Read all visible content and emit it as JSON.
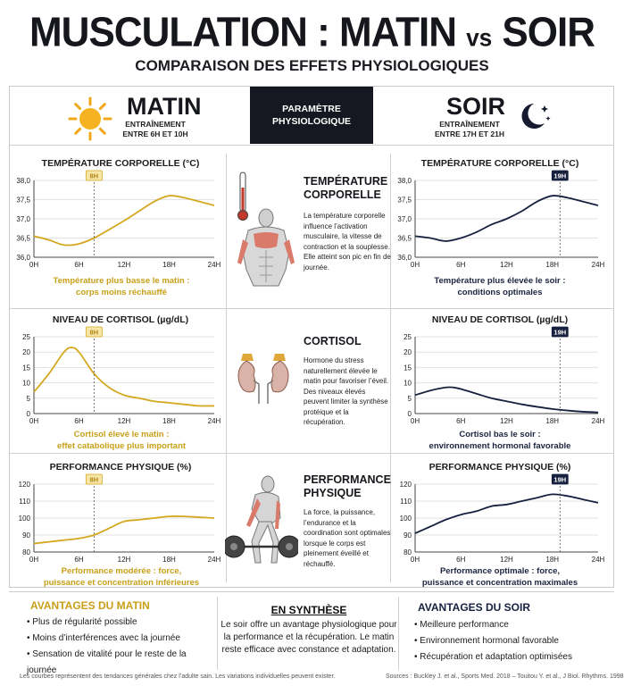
{
  "title_main": "MUSCULATION : MATIN",
  "title_vs": "vs",
  "title_end": "SOIR",
  "subtitle": "COMPARAISON DES EFFETS PHYSIOLOGIQUES",
  "header": {
    "morning_title": "MATIN",
    "morning_sub_1": "ENTRAÎNEMENT",
    "morning_sub_2": "ENTRE 6H ET 10H",
    "param_1": "PARAMÈTRE",
    "param_2": "PHYSIOLOGIQUE",
    "evening_title": "SOIR",
    "evening_sub_1": "ENTRAÎNEMENT",
    "evening_sub_2": "ENTRE 17H ET 21H"
  },
  "colors": {
    "gold": "#d4a820",
    "navy": "#16203f",
    "grid": "#e2e2e2",
    "dark": "#151821"
  },
  "icons": {
    "morning": "sun-icon",
    "evening": "moon-stars-icon",
    "row1": "thermometer-icon",
    "row1_figure": "muscular-torso-icon",
    "row2": "kidneys-adrenal-icon",
    "row3": "deadlift-athlete-icon"
  },
  "params": [
    {
      "name_1": "TEMPÉRATURE",
      "name_2": "CORPORELLE",
      "desc": "La température corporelle influence l’activation musculaire, la vitesse de contraction et la souplesse. Elle atteint son pic en fin de journée."
    },
    {
      "name_1": "CORTISOL",
      "name_2": "",
      "desc": "Hormone du stress naturellement élevée le matin pour favoriser l’éveil. Des niveaux élevés peuvent limiter la synthèse protéique et la récupération."
    },
    {
      "name_1": "PERFORMANCE",
      "name_2": "PHYSIQUE",
      "desc": "La force, la puissance, l’endurance et la coordination sont optimales lorsque le corps est pleinement éveillé et réchauffé."
    }
  ],
  "captions": {
    "temp_morning_1": "Température plus basse le matin :",
    "temp_morning_2": "corps moins réchauffé",
    "temp_evening_1": "Température plus élevée le soir :",
    "temp_evening_2": "conditions optimales",
    "cort_morning_1": "Cortisol élevé le matin :",
    "cort_morning_2": "effet catabolique plus important",
    "cort_evening_1": "Cortisol bas le soir :",
    "cort_evening_2": "environnement hormonal favorable",
    "perf_morning_1": "Performance modérée : force,",
    "perf_morning_2": "puissance et concentration inférieures",
    "perf_evening_1": "Performance optimale : force,",
    "perf_evening_2": "puissance et concentration maximales"
  },
  "chart_data": [
    {
      "type": "line",
      "title": "TEMPÉRATURE CORPORELLE (°C)",
      "side": "matin",
      "color": "#d4a820",
      "marker": "8H",
      "marker_x": 8,
      "x_ticks": [
        "0H",
        "6H",
        "12H",
        "18H",
        "24H"
      ],
      "y_ticks": [
        "36,0",
        "36,5",
        "37,0",
        "37,5",
        "38,0"
      ],
      "ylim": [
        36.0,
        38.0
      ],
      "xlim": [
        0,
        24
      ],
      "x": [
        0,
        2,
        4,
        6,
        8,
        10,
        12,
        14,
        16,
        18,
        20,
        22,
        24
      ],
      "y": [
        36.55,
        36.45,
        36.32,
        36.35,
        36.5,
        36.72,
        36.95,
        37.2,
        37.45,
        37.6,
        37.55,
        37.45,
        37.35
      ]
    },
    {
      "type": "line",
      "title": "TEMPÉRATURE CORPORELLE (°C)",
      "side": "soir",
      "color": "#16203f",
      "marker": "19H",
      "marker_x": 19,
      "x_ticks": [
        "0H",
        "6H",
        "12H",
        "18H",
        "24H"
      ],
      "y_ticks": [
        "36,0",
        "36,5",
        "37,0",
        "37,5",
        "38,0"
      ],
      "ylim": [
        36.0,
        38.0
      ],
      "xlim": [
        0,
        24
      ],
      "x": [
        0,
        2,
        4,
        6,
        8,
        10,
        12,
        14,
        16,
        18,
        20,
        22,
        24
      ],
      "y": [
        36.55,
        36.5,
        36.42,
        36.5,
        36.65,
        36.85,
        37.0,
        37.2,
        37.45,
        37.6,
        37.55,
        37.45,
        37.35
      ]
    },
    {
      "type": "line",
      "title": "NIVEAU DE CORTISOL (µg/dL)",
      "side": "matin",
      "color": "#d4a820",
      "marker": "8H",
      "marker_x": 8,
      "x_ticks": [
        "0H",
        "6H",
        "12H",
        "18H",
        "24H"
      ],
      "y_ticks": [
        "0",
        "5",
        "10",
        "15",
        "20",
        "25"
      ],
      "ylim": [
        0,
        25
      ],
      "xlim": [
        0,
        24
      ],
      "x": [
        0,
        2,
        4,
        5,
        6,
        8,
        10,
        12,
        14,
        16,
        18,
        20,
        22,
        24
      ],
      "y": [
        7,
        13,
        20,
        21.5,
        20,
        13,
        8.5,
        6,
        5,
        4,
        3.5,
        3,
        2.5,
        2.5
      ]
    },
    {
      "type": "line",
      "title": "NIVEAU DE CORTISOL (µg/dL)",
      "side": "soir",
      "color": "#16203f",
      "marker": "19H",
      "marker_x": 19,
      "x_ticks": [
        "0H",
        "6H",
        "12H",
        "18H",
        "24H"
      ],
      "y_ticks": [
        "0",
        "5",
        "10",
        "15",
        "20",
        "25"
      ],
      "ylim": [
        0,
        25
      ],
      "xlim": [
        0,
        24
      ],
      "x": [
        0,
        2,
        4,
        5,
        6,
        8,
        10,
        12,
        14,
        16,
        18,
        20,
        22,
        24
      ],
      "y": [
        6,
        7.5,
        8.5,
        8.5,
        8,
        6.5,
        5,
        4,
        3,
        2.2,
        1.5,
        1,
        0.6,
        0.4
      ]
    },
    {
      "type": "line",
      "title": "PERFORMANCE PHYSIQUE (%)",
      "side": "matin",
      "color": "#d4a820",
      "marker": "8H",
      "marker_x": 8,
      "x_ticks": [
        "0H",
        "6H",
        "12H",
        "18H",
        "24H"
      ],
      "y_ticks": [
        "80",
        "90",
        "100",
        "110",
        "120"
      ],
      "ylim": [
        80,
        120
      ],
      "xlim": [
        0,
        24
      ],
      "x": [
        0,
        2,
        4,
        6,
        8,
        10,
        12,
        14,
        16,
        18,
        20,
        22,
        24
      ],
      "y": [
        85,
        86,
        87,
        88,
        90,
        94,
        98,
        99,
        100,
        101,
        101,
        100.5,
        100
      ]
    },
    {
      "type": "line",
      "title": "PERFORMANCE PHYSIQUE (%)",
      "side": "soir",
      "color": "#16203f",
      "marker": "19H",
      "marker_x": 19,
      "x_ticks": [
        "0H",
        "6H",
        "12H",
        "18H",
        "24H"
      ],
      "y_ticks": [
        "80",
        "90",
        "100",
        "110",
        "120"
      ],
      "ylim": [
        80,
        120
      ],
      "xlim": [
        0,
        24
      ],
      "x": [
        0,
        2,
        4,
        6,
        8,
        10,
        12,
        14,
        16,
        18,
        20,
        22,
        24
      ],
      "y": [
        91,
        95,
        99,
        102,
        104,
        107,
        108,
        110,
        112,
        114,
        113,
        111,
        109
      ]
    }
  ],
  "advantages_morning": {
    "title": "AVANTAGES DU MATIN",
    "items": [
      "Plus de régularité possible",
      "Moins d’interférences avec la journée",
      "Sensation de vitalité pour le reste de la journée"
    ]
  },
  "synthesis": {
    "title": "EN SYNTHÈSE",
    "text": "Le soir offre un avantage physiologique pour la performance et la récupération. Le matin reste efficace avec constance et adaptation."
  },
  "advantages_evening": {
    "title": "AVANTAGES DU SOIR",
    "items": [
      "Meilleure performance",
      "Environnement hormonal favorable",
      "Récupération et adaptation optimisées"
    ]
  },
  "footer_left": "Les courbes représentent des tendances générales chez l’adulte sain. Les variations individuelles peuvent exister.",
  "footer_right": "Sources : Buckley J. et al., Sports Med. 2018 – Touitou Y. et al., J Biol. Rhythms. 1998"
}
